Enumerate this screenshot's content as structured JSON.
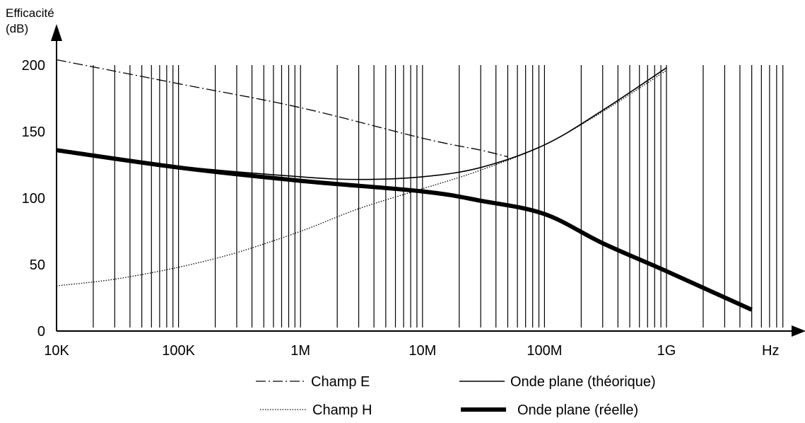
{
  "chart_data": {
    "type": "line",
    "ylabel_line1": "Efficacité",
    "ylabel_line2": "(dB)",
    "xlabel": "Hz",
    "x_scale": "log",
    "xlim": [
      10000,
      10000000000
    ],
    "ylim": [
      0,
      200
    ],
    "x_ticks": [
      {
        "value": 10000,
        "label": "10K"
      },
      {
        "value": 100000,
        "label": "100K"
      },
      {
        "value": 1000000,
        "label": "1M"
      },
      {
        "value": 10000000,
        "label": "10M"
      },
      {
        "value": 100000000,
        "label": "100M"
      },
      {
        "value": 1000000000,
        "label": "1G"
      }
    ],
    "y_ticks": [
      {
        "value": 0,
        "label": "0"
      },
      {
        "value": 50,
        "label": "50"
      },
      {
        "value": 100,
        "label": "100"
      },
      {
        "value": 150,
        "label": "150"
      },
      {
        "value": 200,
        "label": "200"
      }
    ],
    "grid": "vertical log gridlines at 1-9 × each decade",
    "series": [
      {
        "name": "Champ E",
        "style": "dashdot",
        "points": [
          [
            10000,
            204
          ],
          [
            100000,
            186
          ],
          [
            1000000,
            168
          ],
          [
            10000000,
            145
          ],
          [
            30000000,
            136
          ],
          [
            50000000,
            131
          ]
        ]
      },
      {
        "name": "Champ H",
        "style": "dotted",
        "points": [
          [
            10000,
            34
          ],
          [
            30000,
            39
          ],
          [
            100000,
            48
          ],
          [
            300000,
            59
          ],
          [
            1000000,
            75
          ],
          [
            3000000,
            92
          ],
          [
            10000000,
            107
          ],
          [
            30000000,
            121
          ],
          [
            100000000,
            140
          ],
          [
            300000000,
            165
          ],
          [
            1000000000,
            196
          ]
        ]
      },
      {
        "name": "Onde plane (théorique)",
        "style": "thin",
        "points": [
          [
            10000,
            137
          ],
          [
            100000,
            124
          ],
          [
            1000000,
            116
          ],
          [
            3000000,
            114
          ],
          [
            10000000,
            116
          ],
          [
            30000000,
            123
          ],
          [
            100000000,
            140
          ],
          [
            300000000,
            166
          ],
          [
            1000000000,
            198
          ]
        ]
      },
      {
        "name": "Onde plane (réelle)",
        "style": "thick",
        "points": [
          [
            10000,
            136
          ],
          [
            100000,
            123
          ],
          [
            1000000,
            113
          ],
          [
            10000000,
            105
          ],
          [
            30000000,
            98
          ],
          [
            100000000,
            88
          ],
          [
            300000000,
            66
          ],
          [
            1000000000,
            45
          ],
          [
            5000000000,
            16
          ]
        ]
      }
    ],
    "legend_position": "bottom"
  }
}
